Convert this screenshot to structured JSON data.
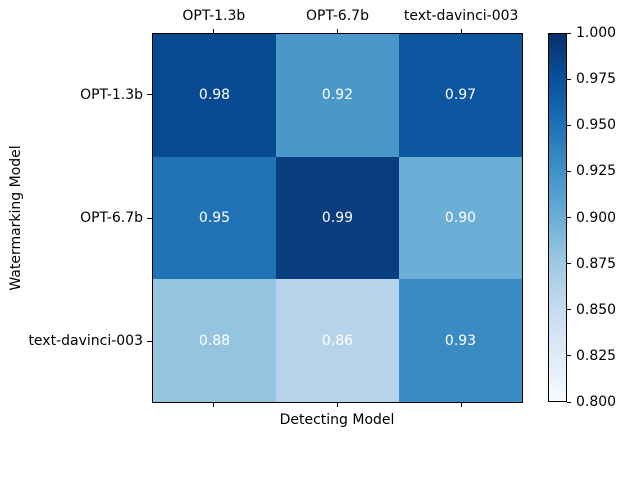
{
  "figure": {
    "background": "#ffffff"
  },
  "chart_data": {
    "type": "heatmap",
    "title": "",
    "xlabel": "Detecting Model",
    "ylabel": "Watermarking Model",
    "columns": [
      "OPT-1.3b",
      "OPT-6.7b",
      "text-davinci-003"
    ],
    "rows": [
      "OPT-1.3b",
      "OPT-6.7b",
      "text-davinci-003"
    ],
    "values": [
      [
        0.98,
        0.92,
        0.97
      ],
      [
        0.95,
        0.99,
        0.9
      ],
      [
        0.88,
        0.86,
        0.93
      ]
    ],
    "cell_labels": [
      [
        "0.98",
        "0.92",
        "0.97"
      ],
      [
        "0.95",
        "0.99",
        "0.90"
      ],
      [
        "0.88",
        "0.86",
        "0.93"
      ]
    ],
    "cell_colors": [
      [
        "#084a92",
        "#4a98c9",
        "#0d57a1"
      ],
      [
        "#2171b5",
        "#083d7f",
        "#6baed6"
      ],
      [
        "#94c4df",
        "#b6d4e9",
        "#3b8bc3"
      ]
    ],
    "cell_text_color": "#ffffff",
    "colormap": "Blues",
    "grid": false,
    "legend_position": "right-colorbar",
    "colorbar": {
      "vmin": 0.8,
      "vmax": 1.0,
      "tick_labels": [
        "1.000",
        "0.975",
        "0.950",
        "0.925",
        "0.900",
        "0.875",
        "0.850",
        "0.825",
        "0.800"
      ],
      "gradient_top_to_bottom": [
        "#08306b",
        "#08519c",
        "#2171b5",
        "#4292c6",
        "#6baed6",
        "#9ecae1",
        "#c6dbef",
        "#deebf7",
        "#f7fbff"
      ]
    }
  }
}
